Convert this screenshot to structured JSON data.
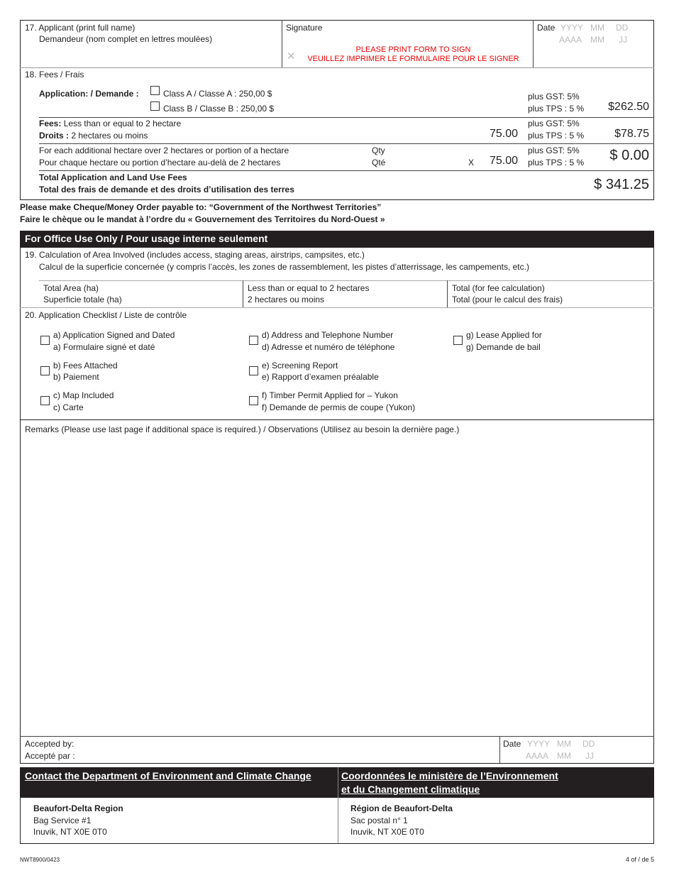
{
  "s17": {
    "applicant_en": "17. Applicant (print full name)",
    "applicant_fr": "Demandeur (nom complet en lettres moulées)",
    "signature": "Signature",
    "sign_x": "✕",
    "print_en": "PLEASE PRINT FORM TO SIGN",
    "print_fr": "VEUILLEZ IMPRIMER LE FORMULAIRE POUR LE SIGNER",
    "date": "Date",
    "yyyy": "YYYY",
    "mm": "MM",
    "dd": "DD",
    "aaaa": "AAAA",
    "mm2": "MM",
    "jj": "JJ"
  },
  "s18": {
    "title": "18. Fees / Frais",
    "app_label": "Application: / Demande :",
    "class_a": "Class A / Classe A : 250,00 $",
    "class_b": "Class B / Classe B : 250,00 $",
    "gst": "plus GST: 5%",
    "tps": "plus TPS : 5 %",
    "app_total": "$262.50",
    "fees_b": "Fees:",
    "fees_t": " Less than or equal to 2 hectare",
    "droits_b": "Droits :",
    "droits_t": " 2 hectares ou moins",
    "fees_amount": "75.00",
    "fees_total": "$78.75",
    "add_en": "For each additional hectare over 2 hectares or portion of a hectare",
    "add_fr": "Pour chaque hectare ou portion d’hectare au-delà de 2 hectares",
    "qty": "Qty",
    "qte": "Qté",
    "x": "X",
    "add_amount": "75.00",
    "add_total": "$ 0.00",
    "total_en": "Total Application and Land Use Fees",
    "total_fr": "Total des frais de demande et des droits d’utilisation des terres",
    "grand_total": "$ 341.25"
  },
  "payable_en": "Please make Cheque/Money Order payable to: “Government of the Northwest Territories”",
  "payable_fr": "Faire le chèque ou le mandat à l’ordre du « Gouvernement des Territoires du Nord-Ouest »",
  "office": {
    "header": "For Office Use Only / Pour usage interne seulement",
    "s19_en": "19. Calculation of Area Involved (includes access, staging areas, airstrips, campsites, etc.)",
    "s19_fr": "Calcul de la superficie concernée (y compris l’accès, les zones de rassemblement, les pistes d’atterrissage, les campements, etc.)",
    "area_cols": [
      [
        "Total Area (ha)",
        "Superficie totale (ha)"
      ],
      [
        "Less than or equal to 2 hectares",
        "2 hectares ou moins"
      ],
      [
        "Total (for fee calculation)",
        "Total (pour le calcul des frais)"
      ]
    ],
    "s20": "20. Application Checklist / Liste de contrôle",
    "checklist": [
      [
        "a) Application Signed and Dated",
        "a) Formulaire signé et daté"
      ],
      [
        "d) Address and Telephone Number",
        "d) Adresse et numéro de téléphone"
      ],
      [
        "g) Lease Applied for",
        "g) Demande de bail"
      ],
      [
        "b) Fees Attached",
        "b) Paiement"
      ],
      [
        "e) Screening Report",
        "e) Rapport d’examen préalable"
      ],
      [
        "c) Map Included",
        "c) Carte"
      ],
      [
        "f) Timber Permit Applied for – Yukon",
        "f) Demande de permis de coupe (Yukon)"
      ]
    ],
    "remarks": "Remarks (Please use last page if additional space is required.) / Observations (Utilisez au besoin la dernière page.)",
    "accepted_en": "Accepted by:",
    "accepted_fr": "Accepté par :",
    "date": "Date",
    "yyyy": "YYYY",
    "mm": "MM",
    "dd": "DD",
    "aaaa": "AAAA",
    "mm2": "MM",
    "jj": "JJ"
  },
  "contact": {
    "header_en": "Contact the Department of Environment and Climate Change",
    "header_fr1": "Coordonnées le ministère de l’Environnement",
    "header_fr2": "et du Changement climatique",
    "en": [
      "Beaufort-Delta Region",
      "Bag Service #1",
      "Inuvik, NT  X0E 0T0"
    ],
    "fr": [
      "Région de Beaufort-Delta",
      "Sac postal n° 1",
      "Inuvik, NT  X0E 0T0"
    ]
  },
  "footer": {
    "form_id": "NWT8900/0423",
    "page": "4 of / de 5"
  }
}
